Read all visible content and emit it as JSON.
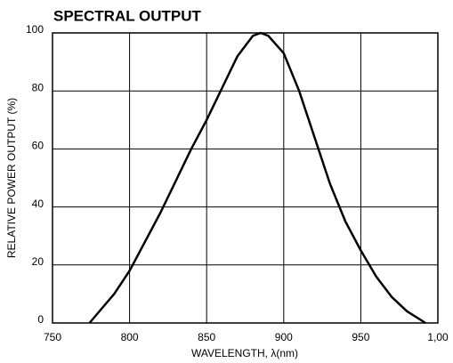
{
  "chart_data": {
    "type": "line",
    "title": "SPECTRAL OUTPUT",
    "x_label": "WAVELENGTH, λ(nm)",
    "y_label": "RELATIVE POWER OUTPUT (%)",
    "x": [
      774,
      790,
      800,
      820,
      840,
      850,
      860,
      870,
      880,
      885,
      890,
      900,
      910,
      920,
      930,
      940,
      950,
      960,
      970,
      980,
      992
    ],
    "series": [
      {
        "color": "#000000",
        "values": [
          0,
          10,
          18,
          38,
          60,
          70,
          81,
          92,
          99,
          100,
          99,
          93,
          80,
          64,
          48,
          35,
          25,
          16,
          9,
          4,
          0
        ]
      }
    ],
    "xlim": [
      750,
      1000
    ],
    "xticks": [
      750,
      800,
      850,
      900,
      950,
      {
        "value": 1000,
        "label": "1,00"
      }
    ],
    "ylim": [
      0,
      100
    ],
    "yticks": [
      0,
      20,
      40,
      60,
      80,
      100
    ],
    "grid": true
  }
}
